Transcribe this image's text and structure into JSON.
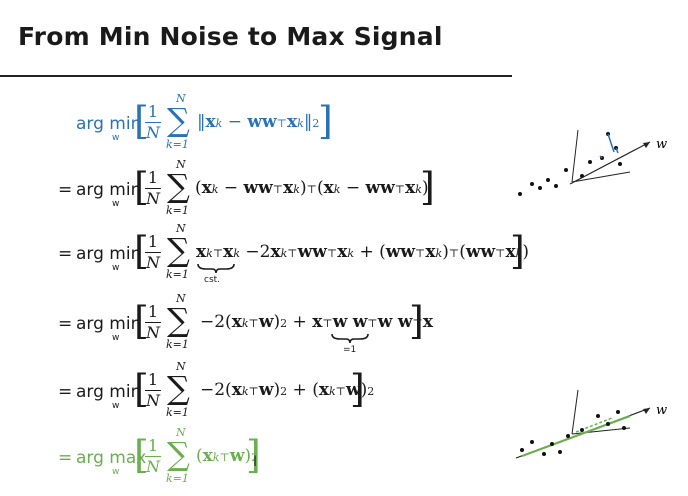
{
  "title": "From Min Noise to Max Signal",
  "steps": [
    {
      "prefix": "",
      "op": "arg min",
      "under": "w",
      "body": "‖x_k − ww⊤x_k‖²",
      "color": "#2a72b5"
    },
    {
      "prefix": "=",
      "op": "arg min",
      "under": "w",
      "body": "(x_k − ww⊤x_k)⊤(x_k − ww⊤x_k)",
      "color": "#1a1a1a"
    },
    {
      "prefix": "=",
      "op": "arg min",
      "under": "w",
      "body": "x_k⊤x_k −2x_k⊤ww⊤x_k + (ww⊤x_k)⊤(ww⊤x_k)",
      "note": "cst.",
      "color": "#1a1a1a"
    },
    {
      "prefix": "=",
      "op": "arg min",
      "under": "w",
      "body": "−2(x_k⊤w)² + x⊤w w⊤w w⊤x",
      "note": "=1",
      "color": "#1a1a1a"
    },
    {
      "prefix": "=",
      "op": "arg min",
      "under": "w",
      "body": "−2(x_k⊤w)² + (x_k⊤w)²",
      "color": "#1a1a1a"
    },
    {
      "prefix": "=",
      "op": "arg max",
      "under": "w",
      "body": "(x_k⊤w)²",
      "color": "#6aae4f"
    }
  ],
  "labels": {
    "frac_num": "1",
    "frac_den": "N",
    "sum_top": "N",
    "sum_bottom": "k=1",
    "note_cst": "cst.",
    "note_one": "=1",
    "axis_w": "w"
  }
}
